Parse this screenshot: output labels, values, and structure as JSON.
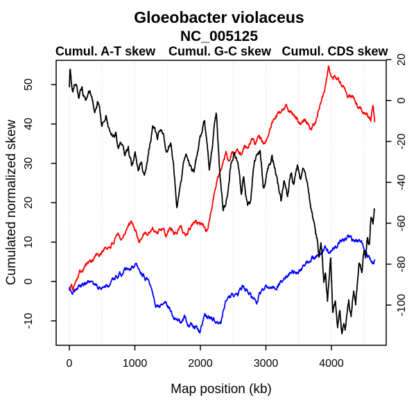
{
  "header": {
    "title": "Gloeobacter violaceus",
    "subtitle": "NC_005125"
  },
  "legend": [
    {
      "label": "Cumul. A-T skew",
      "color": "#ff0000",
      "series": "at_skew"
    },
    {
      "label": "Cumul. G-C skew",
      "color": "#0000ff",
      "series": "gc_skew"
    },
    {
      "label": "Cumul. CDS skew",
      "color": "#000000",
      "series": "cds_skew"
    }
  ],
  "axes": {
    "x_title": "Map position (kb)",
    "y_left_title": "Cumulated normalized skew",
    "x_ticks": [
      0,
      1000,
      2000,
      3000,
      4000
    ],
    "x_gridlines_kb": [
      0,
      500,
      1000,
      1500,
      2000,
      2500,
      3000,
      3500,
      4000,
      4500
    ],
    "y_left_ticks": [
      -10,
      0,
      10,
      20,
      30,
      40,
      50
    ],
    "y_right_ticks": [
      -100,
      -80,
      -60,
      -40,
      -20,
      0,
      20
    ]
  },
  "chart_data": {
    "type": "line",
    "title": "Gloeobacter violaceus",
    "subtitle": "NC_005125",
    "xlabel": "Map position (kb)",
    "ylabel_left": "Cumulated normalized skew",
    "x_unit": "kb",
    "x_range": [
      0,
      4660
    ],
    "y_left_range": [
      -16,
      56
    ],
    "y_right_range": [
      -120,
      20
    ],
    "grid": "vertical dotted gridlines every 500 kb",
    "legend_position": "top, above plot",
    "series": [
      {
        "name": "Cumul. A-T skew",
        "color": "#ff0000",
        "axis": "left",
        "points": [
          [
            0,
            -2
          ],
          [
            30,
            -1
          ],
          [
            60,
            -2.3
          ],
          [
            90,
            0.5
          ],
          [
            160,
            2.6
          ],
          [
            250,
            4.4
          ],
          [
            330,
            5.2
          ],
          [
            400,
            6.5
          ],
          [
            470,
            6.6
          ],
          [
            530,
            8.3
          ],
          [
            590,
            8.6
          ],
          [
            640,
            9.2
          ],
          [
            700,
            10.5
          ],
          [
            745,
            11.5
          ],
          [
            800,
            11.0
          ],
          [
            880,
            13.8
          ],
          [
            950,
            14.6
          ],
          [
            1010,
            13.0
          ],
          [
            1060,
            9.9
          ],
          [
            1110,
            11.5
          ],
          [
            1150,
            12.9
          ],
          [
            1200,
            11.6
          ],
          [
            1270,
            13.8
          ],
          [
            1340,
            12.4
          ],
          [
            1410,
            13.2
          ],
          [
            1480,
            11.5
          ],
          [
            1540,
            13.8
          ],
          [
            1600,
            12.4
          ],
          [
            1690,
            14.1
          ],
          [
            1770,
            12.0
          ],
          [
            1850,
            14.0
          ],
          [
            1926,
            15.9
          ],
          [
            1990,
            14.3
          ],
          [
            2042,
            15.0
          ],
          [
            2080,
            13.2
          ],
          [
            2110,
            13.0
          ],
          [
            2150,
            16.5
          ],
          [
            2200,
            21.0
          ],
          [
            2250,
            25.5
          ],
          [
            2300,
            28.5
          ],
          [
            2330,
            30.1
          ],
          [
            2391,
            32.7
          ],
          [
            2423,
            30.5
          ],
          [
            2487,
            33.3
          ],
          [
            2518,
            32.2
          ],
          [
            2571,
            33.6
          ],
          [
            2624,
            32.7
          ],
          [
            2677,
            34.9
          ],
          [
            2730,
            34.2
          ],
          [
            2783,
            35.9
          ],
          [
            2836,
            35.0
          ],
          [
            2889,
            36.6
          ],
          [
            2942,
            35.7
          ],
          [
            3000,
            35.4
          ],
          [
            3037,
            37.5
          ],
          [
            3090,
            40.0
          ],
          [
            3160,
            41.5
          ],
          [
            3228,
            43.3
          ],
          [
            3302,
            44.5
          ],
          [
            3350,
            43.4
          ],
          [
            3400,
            43.0
          ],
          [
            3439,
            41.9
          ],
          [
            3500,
            40.7
          ],
          [
            3545,
            39.9
          ],
          [
            3600,
            41.0
          ],
          [
            3650,
            39.5
          ],
          [
            3700,
            38.8
          ],
          [
            3760,
            40.0
          ],
          [
            3810,
            43.6
          ],
          [
            3870,
            47.1
          ],
          [
            3920,
            50.5
          ],
          [
            3958,
            54.5
          ],
          [
            3990,
            52.2
          ],
          [
            4021,
            51.0
          ],
          [
            4060,
            51.8
          ],
          [
            4095,
            51.5
          ],
          [
            4150,
            50.3
          ],
          [
            4200,
            49.4
          ],
          [
            4250,
            47.1
          ],
          [
            4290,
            46.6
          ],
          [
            4350,
            46.2
          ],
          [
            4420,
            44.1
          ],
          [
            4470,
            43.6
          ],
          [
            4550,
            42.7
          ],
          [
            4600,
            40.9
          ],
          [
            4635,
            44.8
          ],
          [
            4660,
            40.6
          ]
        ]
      },
      {
        "name": "Cumul. G-C skew",
        "color": "#0000ff",
        "axis": "left",
        "points": [
          [
            0,
            -1.5
          ],
          [
            40,
            -2.6
          ],
          [
            100,
            -1.8
          ],
          [
            170,
            -1.2
          ],
          [
            240,
            -0.8
          ],
          [
            320,
            -0.5
          ],
          [
            400,
            -1.5
          ],
          [
            500,
            -1.4
          ],
          [
            600,
            -0.5
          ],
          [
            670,
            0.4
          ],
          [
            740,
            0.9
          ],
          [
            800,
            1.5
          ],
          [
            850,
            3.2
          ],
          [
            900,
            3.0
          ],
          [
            950,
            3.5
          ],
          [
            1005,
            3.9
          ],
          [
            1060,
            2.6
          ],
          [
            1120,
            1.5
          ],
          [
            1200,
            0.4
          ],
          [
            1250,
            -1.5
          ],
          [
            1320,
            -5.5
          ],
          [
            1400,
            -6.2
          ],
          [
            1480,
            -5.3
          ],
          [
            1560,
            -7.5
          ],
          [
            1620,
            -9.7
          ],
          [
            1700,
            -10.2
          ],
          [
            1760,
            -9.5
          ],
          [
            1820,
            -10.8
          ],
          [
            1870,
            -11.1
          ],
          [
            1930,
            -11.5
          ],
          [
            1990,
            -13.2
          ],
          [
            2060,
            -8.5
          ],
          [
            2120,
            -9.0
          ],
          [
            2180,
            -9.5
          ],
          [
            2250,
            -10.5
          ],
          [
            2310,
            -10.9
          ],
          [
            2380,
            -5.2
          ],
          [
            2440,
            -3.9
          ],
          [
            2500,
            -3.4
          ],
          [
            2570,
            -3.0
          ],
          [
            2645,
            -1.4
          ],
          [
            2700,
            -2.5
          ],
          [
            2780,
            -3.9
          ],
          [
            2860,
            -4.9
          ],
          [
            2920,
            -2.5
          ],
          [
            3000,
            -1.0
          ],
          [
            3080,
            -1.6
          ],
          [
            3175,
            -1.2
          ],
          [
            3250,
            0.5
          ],
          [
            3330,
            1.5
          ],
          [
            3420,
            2.5
          ],
          [
            3492,
            2.8
          ],
          [
            3560,
            3.5
          ],
          [
            3620,
            4.4
          ],
          [
            3700,
            5.5
          ],
          [
            3780,
            6.5
          ],
          [
            3840,
            7.1
          ],
          [
            3915,
            8.3
          ],
          [
            3970,
            7.5
          ],
          [
            4030,
            8.5
          ],
          [
            4095,
            9.2
          ],
          [
            4150,
            11.0
          ],
          [
            4200,
            10.3
          ],
          [
            4260,
            11.5
          ],
          [
            4320,
            10.5
          ],
          [
            4380,
            10.8
          ],
          [
            4430,
            10.2
          ],
          [
            4500,
            8.1
          ],
          [
            4550,
            6.9
          ],
          [
            4590,
            5.8
          ],
          [
            4640,
            4.8
          ],
          [
            4660,
            5.5
          ]
        ]
      },
      {
        "name": "Cumul. CDS skew",
        "color": "#000000",
        "axis": "right",
        "points": [
          [
            0,
            5.8
          ],
          [
            12,
            15.8
          ],
          [
            30,
            9
          ],
          [
            53,
            4.3
          ],
          [
            80,
            8
          ],
          [
            106,
            7.8
          ],
          [
            138,
            2.0
          ],
          [
            190,
            5.8
          ],
          [
            243,
            -0.9
          ],
          [
            317,
            3.1
          ],
          [
            391,
            -5.3
          ],
          [
            444,
            -1.3
          ],
          [
            497,
            -11.5
          ],
          [
            561,
            -7.1
          ],
          [
            614,
            -16.1
          ],
          [
            688,
            -18.8
          ],
          [
            709,
            -13.8
          ],
          [
            741,
            -24.0
          ],
          [
            794,
            -20.6
          ],
          [
            847,
            -28.4
          ],
          [
            900,
            -24.6
          ],
          [
            952,
            -31.9
          ],
          [
            1005,
            -27.5
          ],
          [
            1058,
            -34.2
          ],
          [
            1090,
            -29.8
          ],
          [
            1143,
            -36.5
          ],
          [
            1200,
            -26.9
          ],
          [
            1270,
            -12.7
          ],
          [
            1344,
            -18.2
          ],
          [
            1407,
            -12.7
          ],
          [
            1481,
            -24.0
          ],
          [
            1555,
            -20.0
          ],
          [
            1640,
            -50.0
          ],
          [
            1700,
            -38.5
          ],
          [
            1746,
            -30.8
          ],
          [
            1800,
            -27.5
          ],
          [
            1860,
            -34.6
          ],
          [
            1905,
            -34.2
          ],
          [
            1960,
            -25.0
          ],
          [
            2010,
            -17.3
          ],
          [
            2063,
            -8.6
          ],
          [
            2137,
            -34.6
          ],
          [
            2190,
            -21.1
          ],
          [
            2243,
            -6.9
          ],
          [
            2300,
            -36.5
          ],
          [
            2349,
            -55.0
          ],
          [
            2412,
            -46.7
          ],
          [
            2465,
            -32.3
          ],
          [
            2518,
            -23.8
          ],
          [
            2560,
            -28.8
          ],
          [
            2593,
            -35.6
          ],
          [
            2624,
            -45.8
          ],
          [
            2660,
            -38.5
          ],
          [
            2719,
            -52.5
          ],
          [
            2772,
            -48.1
          ],
          [
            2825,
            -28.8
          ],
          [
            2857,
            -25.6
          ],
          [
            2910,
            -24.4
          ],
          [
            2963,
            -42.3
          ],
          [
            3000,
            -38.5
          ],
          [
            3037,
            -32.3
          ],
          [
            3090,
            -27.9
          ],
          [
            3122,
            -31.1
          ],
          [
            3180,
            -40.4
          ],
          [
            3230,
            -49.0
          ],
          [
            3280,
            -38.5
          ],
          [
            3330,
            -48.1
          ],
          [
            3380,
            -34.6
          ],
          [
            3430,
            -40.4
          ],
          [
            3480,
            -32.7
          ],
          [
            3530,
            -37.5
          ],
          [
            3580,
            -32.7
          ],
          [
            3620,
            -38.5
          ],
          [
            3672,
            -49.4
          ],
          [
            3730,
            -59.6
          ],
          [
            3780,
            -67.3
          ],
          [
            3810,
            -75.0
          ],
          [
            3841,
            -69.8
          ],
          [
            3884,
            -89.3
          ],
          [
            3910,
            -83.5
          ],
          [
            3940,
            -97.9
          ],
          [
            3989,
            -76.6
          ],
          [
            4021,
            -103.7
          ],
          [
            4060,
            -97.0
          ],
          [
            4095,
            -110.6
          ],
          [
            4130,
            -103.7
          ],
          [
            4158,
            -113.9
          ],
          [
            4190,
            -108.1
          ],
          [
            4211,
            -112.9
          ],
          [
            4264,
            -97.9
          ],
          [
            4300,
            -106.2
          ],
          [
            4339,
            -93.5
          ],
          [
            4370,
            -100.4
          ],
          [
            4423,
            -79.6
          ],
          [
            4465,
            -84.1
          ],
          [
            4497,
            -73.9
          ],
          [
            4520,
            -77.3
          ],
          [
            4550,
            -66.7
          ],
          [
            4582,
            -70.6
          ],
          [
            4603,
            -56.9
          ],
          [
            4635,
            -60.4
          ],
          [
            4656,
            -53.7
          ]
        ]
      }
    ]
  }
}
